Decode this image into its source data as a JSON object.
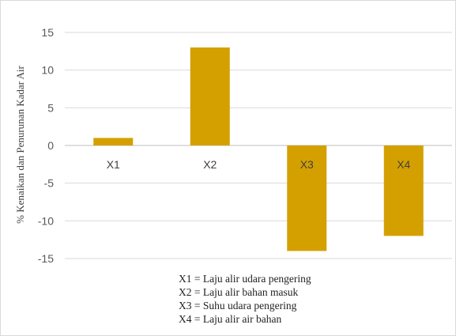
{
  "chart_data": {
    "type": "bar",
    "categories": [
      "X1",
      "X2",
      "X3",
      "X4"
    ],
    "values": [
      1,
      13,
      -14,
      -12
    ],
    "ylabel": "% Kenaikan dan Penurunan Kadar Air",
    "yticks": [
      15,
      10,
      5,
      0,
      -5,
      -10,
      -15
    ],
    "ylim": [
      -15,
      15
    ],
    "grid": true,
    "bar_color": "#D4A000",
    "legend_notes": [
      "X1 = Laju alir udara pengering",
      "X2 = Laju alir bahan masuk",
      "X3 = Suhu udara pengering",
      "X4 = Laju alir air bahan"
    ]
  }
}
